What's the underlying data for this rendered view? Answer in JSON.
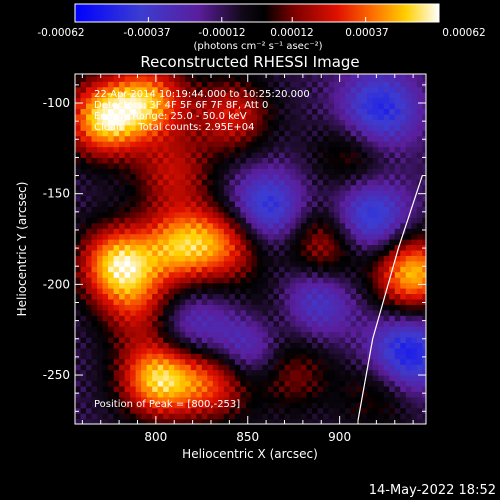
{
  "chart_data": {
    "type": "heatmap",
    "title": "Reconstructed RHESSI Image",
    "xlabel": "Heliocentric X (arcsec)",
    "ylabel": "Heliocentric Y (arcsec)",
    "xlim": [
      756,
      947
    ],
    "ylim": [
      -277,
      -84
    ],
    "x_ticks": [
      800,
      850,
      900
    ],
    "y_ticks": [
      -100,
      -150,
      -200,
      -250
    ],
    "colorbar": {
      "range": [
        -0.00062,
        0.00062
      ],
      "ticks": [
        "-0.00062",
        "-0.00037",
        "-0.00012",
        "0.00012",
        "0.00037",
        "0.00062"
      ],
      "tick_values": [
        -0.00062,
        -0.00037,
        -0.00012,
        0.00012,
        0.00037,
        0.00062
      ],
      "units_label": "(photons cm⁻² s⁻¹ asec⁻²)"
    },
    "annotations": [
      "22-Apr-2014 10:19:44.000 to 10:25:20.000",
      "Detectors: 3F 4F 5F 6F 7F 8F, Att 0",
      "Energy Range: 25.0 - 50.0 keV",
      "Clean     Total counts: 2.95E+04"
    ],
    "peak_label": "Position of Peak = [800,-253]",
    "peak": [
      800,
      -253
    ],
    "bright_regions": [
      {
        "x": 770,
        "y": -110,
        "value": 0.0006
      },
      {
        "x": 795,
        "y": -100,
        "value": 0.0005
      },
      {
        "x": 840,
        "y": -108,
        "value": 0.00035
      },
      {
        "x": 808,
        "y": -140,
        "value": 0.0003
      },
      {
        "x": 778,
        "y": -190,
        "value": 0.00062
      },
      {
        "x": 812,
        "y": -180,
        "value": 0.0005
      },
      {
        "x": 838,
        "y": -178,
        "value": 0.0004
      },
      {
        "x": 790,
        "y": -215,
        "value": 0.0003
      },
      {
        "x": 800,
        "y": -253,
        "value": 0.00062
      },
      {
        "x": 830,
        "y": -255,
        "value": 0.0004
      },
      {
        "x": 872,
        "y": -250,
        "value": 0.00025
      },
      {
        "x": 890,
        "y": -180,
        "value": 0.00035
      },
      {
        "x": 938,
        "y": -195,
        "value": 0.0006
      },
      {
        "x": 905,
        "y": -130,
        "value": 0.0002
      },
      {
        "x": 860,
        "y": -220,
        "value": 0.0002
      },
      {
        "x": 920,
        "y": -260,
        "value": 0.0002
      }
    ],
    "dark_regions": [
      {
        "x": 858,
        "y": -160,
        "value": -0.0004
      },
      {
        "x": 915,
        "y": -165,
        "value": -0.0004
      },
      {
        "x": 935,
        "y": -240,
        "value": -0.00045
      },
      {
        "x": 850,
        "y": -235,
        "value": -0.00035
      },
      {
        "x": 920,
        "y": -105,
        "value": -0.0004
      },
      {
        "x": 815,
        "y": -225,
        "value": -0.00025
      },
      {
        "x": 885,
        "y": -210,
        "value": -0.0003
      }
    ],
    "limb_arc": [
      [
        945,
        -140
      ],
      [
        932,
        -180
      ],
      [
        918,
        -230
      ],
      [
        910,
        -275
      ]
    ]
  },
  "footer_timestamp": "14-May-2022 18:52"
}
